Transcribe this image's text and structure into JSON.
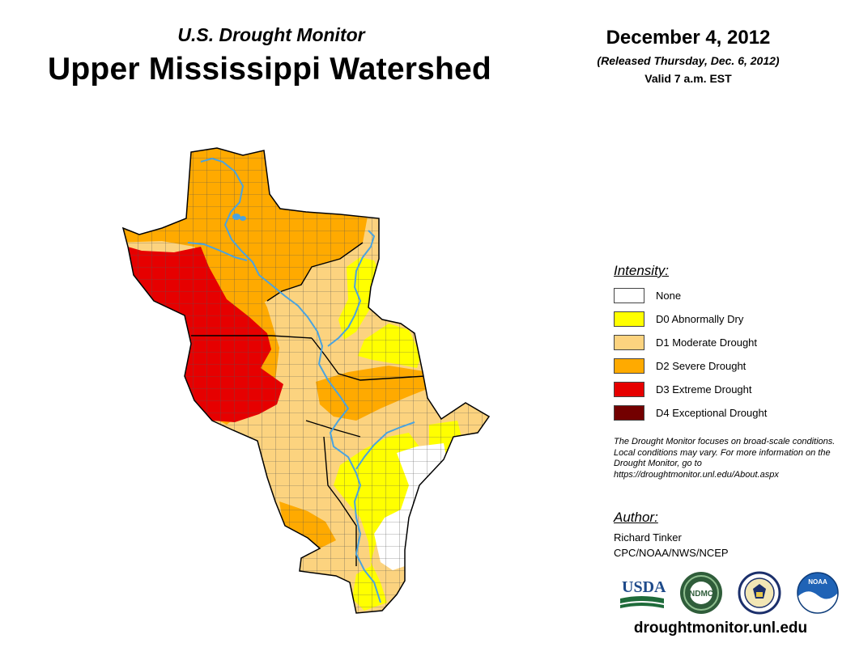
{
  "header": {
    "subtitle": "U.S. Drought Monitor",
    "title": "Upper Mississippi Watershed",
    "date": "December 4, 2012",
    "released": "(Released Thursday, Dec. 6, 2012)",
    "valid": "Valid 7 a.m. EST"
  },
  "legend": {
    "heading": "Intensity:",
    "items": [
      {
        "label": "None",
        "color": "#ffffff"
      },
      {
        "label": "D0 Abnormally Dry",
        "color": "#ffff00"
      },
      {
        "label": "D1 Moderate Drought",
        "color": "#fcd37f"
      },
      {
        "label": "D2 Severe Drought",
        "color": "#ffaa00"
      },
      {
        "label": "D3 Extreme Drought",
        "color": "#e60000"
      },
      {
        "label": "D4 Exceptional Drought",
        "color": "#730000"
      }
    ]
  },
  "note": "The Drought Monitor focuses on broad-scale conditions. Local conditions may vary. For more information on the Drought Monitor, go to https://droughtmonitor.unl.edu/About.aspx",
  "author": {
    "heading": "Author:",
    "name": "Richard Tinker",
    "org": "CPC/NOAA/NWS/NCEP"
  },
  "logos": [
    {
      "name": "usda-logo",
      "text": "USDA"
    },
    {
      "name": "ndmc-logo",
      "text": "NDMC"
    },
    {
      "name": "commerce-seal-logo",
      "text": ""
    },
    {
      "name": "noaa-logo",
      "text": "NOAA"
    }
  ],
  "footer": {
    "url": "droughtmonitor.unl.edu"
  },
  "colors": {
    "river": "#4aa3df",
    "county_line": "#555555",
    "state_line": "#000000"
  }
}
